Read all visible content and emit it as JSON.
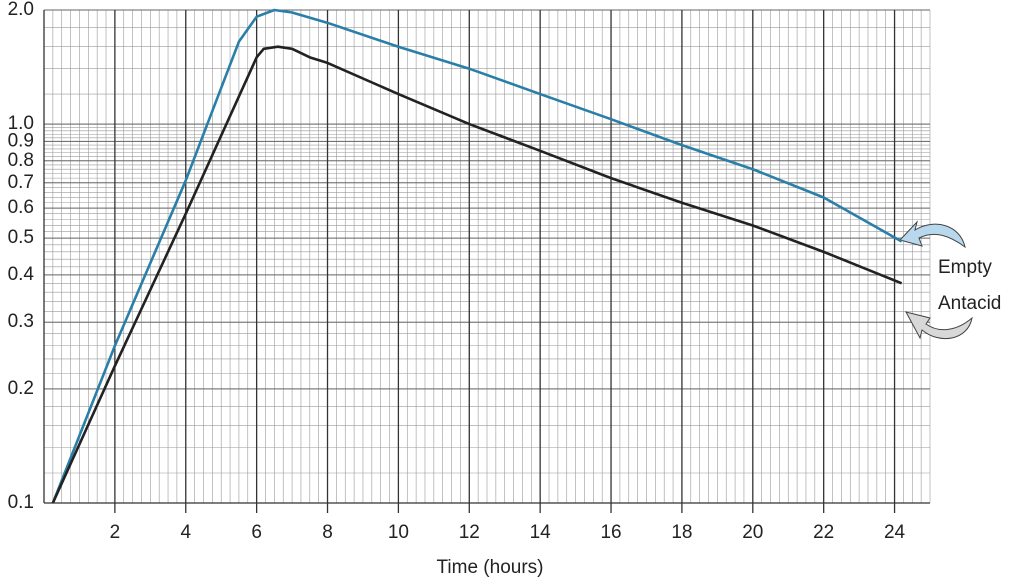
{
  "chart_data": {
    "type": "line",
    "x_label": "Time (hours)",
    "log_y": true,
    "grid": true,
    "xlim": [
      0,
      25
    ],
    "xticks": [
      2,
      4,
      6,
      8,
      10,
      12,
      14,
      16,
      18,
      20,
      22,
      24
    ],
    "ylim": [
      0.1,
      2.0
    ],
    "yticks": [
      0.1,
      0.2,
      0.3,
      0.4,
      0.5,
      0.6,
      0.7,
      0.8,
      0.9,
      {
        "value": 1.0,
        "label": "1.0"
      },
      {
        "value": 2.0,
        "label": "2.0"
      }
    ],
    "series": [
      {
        "name": "Empty",
        "color": "#2a7fa8",
        "x": [
          0.25,
          2,
          4,
          5.5,
          6,
          6.5,
          7,
          8,
          10,
          12,
          14,
          16,
          18,
          20,
          22,
          24.2
        ],
        "values": [
          0.1,
          0.26,
          0.71,
          1.65,
          1.92,
          2.0,
          1.97,
          1.85,
          1.6,
          1.4,
          1.2,
          1.03,
          0.88,
          0.76,
          0.64,
          0.49
        ]
      },
      {
        "name": "Antacid",
        "color": "#222222",
        "x": [
          0.25,
          2,
          4,
          6,
          6.2,
          6.6,
          7,
          7.5,
          8,
          10,
          12,
          14,
          16,
          18,
          20,
          22,
          24.2
        ],
        "values": [
          0.1,
          0.23,
          0.58,
          1.5,
          1.58,
          1.6,
          1.58,
          1.5,
          1.45,
          1.2,
          1.0,
          0.85,
          0.72,
          0.62,
          0.54,
          0.46,
          0.38
        ]
      }
    ]
  }
}
